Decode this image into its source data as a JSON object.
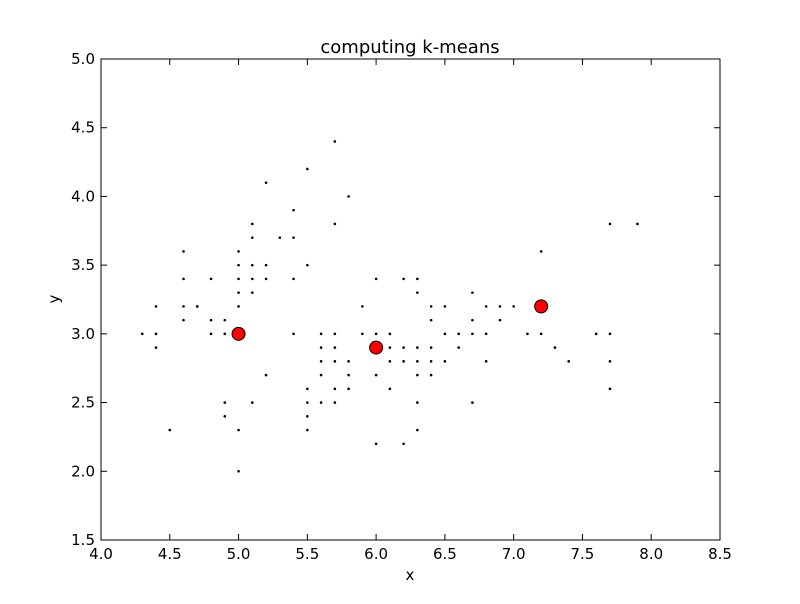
{
  "chart_data": {
    "type": "scatter",
    "title": "computing k-means",
    "xlabel": "x",
    "ylabel": "y",
    "xlim": [
      4.0,
      8.5
    ],
    "ylim": [
      1.5,
      5.0
    ],
    "xticks": [
      4.0,
      4.5,
      5.0,
      5.5,
      6.0,
      6.5,
      7.0,
      7.5,
      8.0,
      8.5
    ],
    "xtick_labels": [
      "4.0",
      "4.5",
      "5.0",
      "5.5",
      "6.0",
      "6.5",
      "7.0",
      "7.5",
      "8.0",
      "8.5"
    ],
    "yticks": [
      1.5,
      2.0,
      2.5,
      3.0,
      3.5,
      4.0,
      4.5,
      5.0
    ],
    "ytick_labels": [
      "1.5",
      "2.0",
      "2.5",
      "3.0",
      "3.5",
      "4.0",
      "4.5",
      "5.0"
    ],
    "grid": false,
    "legend": "none",
    "colors": {
      "points": "#000000",
      "centroids": "#ff0000",
      "centroid_edge": "#000000"
    },
    "series": [
      {
        "role": "points",
        "x": [
          4.3,
          4.4,
          4.4,
          4.4,
          4.5,
          4.6,
          4.6,
          4.6,
          4.6,
          4.7,
          4.7,
          4.8,
          4.8,
          4.8,
          4.9,
          4.9,
          4.9,
          4.9,
          5.0,
          5.0,
          5.0,
          5.0,
          5.0,
          5.0,
          5.0,
          5.0,
          5.1,
          5.1,
          5.1,
          5.1,
          5.1,
          5.1,
          5.2,
          5.2,
          5.2,
          5.2,
          5.3,
          5.4,
          5.4,
          5.4,
          5.4,
          5.5,
          5.5,
          5.5,
          5.5,
          5.5,
          5.5,
          5.6,
          5.6,
          5.6,
          5.6,
          5.6,
          5.7,
          5.7,
          5.7,
          5.7,
          5.7,
          5.7,
          5.7,
          5.8,
          5.8,
          5.8,
          5.8,
          5.9,
          5.9,
          6.0,
          6.0,
          6.0,
          6.0,
          6.0,
          6.1,
          6.1,
          6.1,
          6.1,
          6.2,
          6.2,
          6.2,
          6.2,
          6.3,
          6.3,
          6.3,
          6.3,
          6.3,
          6.3,
          6.3,
          6.4,
          6.4,
          6.4,
          6.4,
          6.4,
          6.5,
          6.5,
          6.5,
          6.6,
          6.6,
          6.7,
          6.7,
          6.7,
          6.7,
          6.8,
          6.8,
          6.8,
          6.9,
          6.9,
          7.0,
          7.1,
          7.2,
          7.2,
          7.3,
          7.4,
          7.6,
          7.7,
          7.7,
          7.7,
          7.7,
          7.9
        ],
        "y": [
          3.0,
          3.2,
          3.0,
          2.9,
          2.3,
          3.6,
          3.4,
          3.2,
          3.1,
          3.2,
          3.2,
          3.4,
          3.1,
          3.0,
          3.1,
          3.0,
          2.5,
          2.4,
          3.6,
          3.5,
          3.4,
          3.3,
          3.2,
          3.0,
          2.3,
          2.0,
          3.8,
          3.7,
          3.5,
          3.4,
          3.3,
          2.5,
          4.1,
          3.5,
          3.4,
          2.7,
          3.7,
          3.9,
          3.7,
          3.4,
          3.0,
          4.2,
          3.5,
          2.6,
          2.5,
          2.4,
          2.3,
          3.0,
          2.9,
          2.8,
          2.7,
          2.5,
          4.4,
          3.8,
          3.0,
          2.9,
          2.8,
          2.6,
          2.5,
          4.0,
          2.8,
          2.7,
          2.6,
          3.2,
          3.0,
          3.4,
          3.0,
          2.7,
          2.2,
          2.9,
          3.0,
          2.9,
          2.8,
          2.6,
          3.4,
          2.9,
          2.8,
          2.2,
          3.4,
          3.3,
          2.9,
          2.8,
          2.7,
          2.5,
          2.3,
          3.2,
          3.1,
          2.9,
          2.8,
          2.7,
          3.2,
          3.0,
          2.8,
          3.0,
          2.9,
          3.3,
          3.1,
          3.0,
          2.5,
          3.2,
          3.0,
          2.8,
          3.2,
          3.1,
          3.2,
          3.0,
          3.6,
          3.0,
          2.9,
          2.8,
          3.0,
          3.8,
          3.0,
          2.8,
          2.6,
          3.8
        ]
      },
      {
        "role": "centroids",
        "x": [
          5.0,
          6.0,
          7.2
        ],
        "y": [
          3.0,
          2.9,
          3.2
        ]
      }
    ]
  }
}
